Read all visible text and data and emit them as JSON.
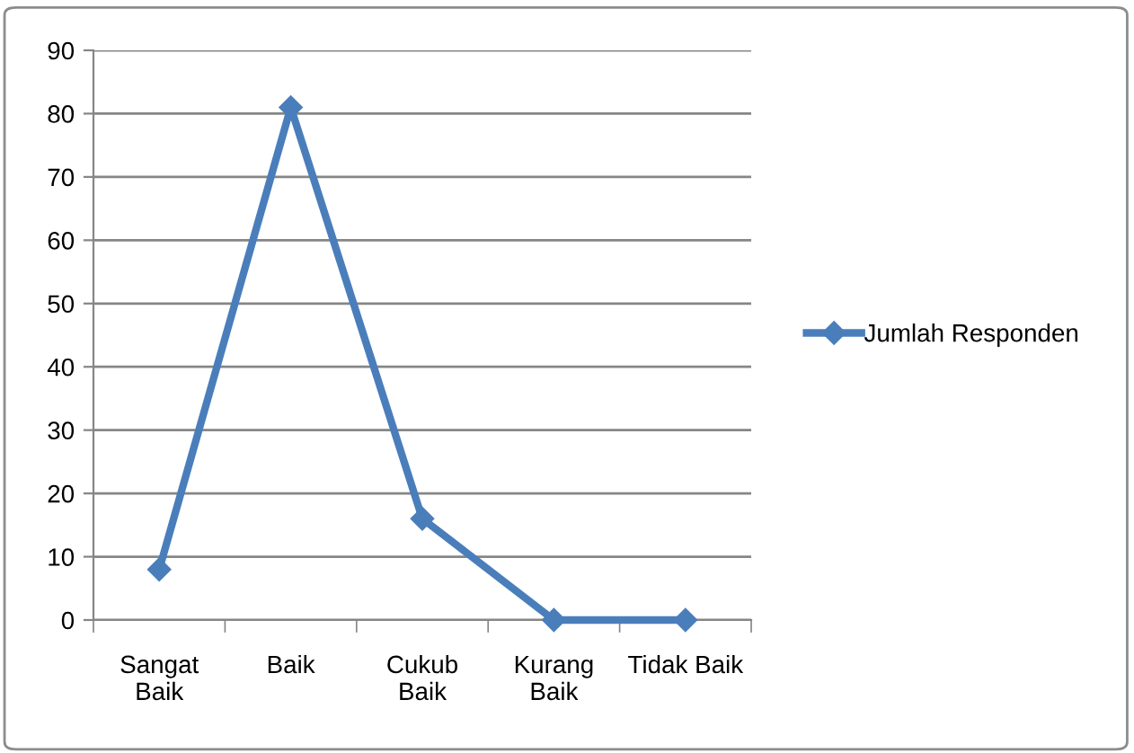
{
  "chart_data": {
    "type": "line",
    "categories": [
      "Sangat\nBaik",
      "Baik",
      "Cukub\nBaik",
      "Kurang\nBaik",
      "Tidak Baik"
    ],
    "series": [
      {
        "name": "Jumlah Responden",
        "color": "#4a7ebb",
        "values": [
          8,
          81,
          16,
          0,
          0
        ]
      }
    ],
    "ylim": [
      0,
      90
    ],
    "yticks": [
      0,
      10,
      20,
      30,
      40,
      50,
      60,
      70,
      80,
      90
    ],
    "grid": "y",
    "legend": "right",
    "marker": "diamond",
    "line_style": "solid"
  }
}
